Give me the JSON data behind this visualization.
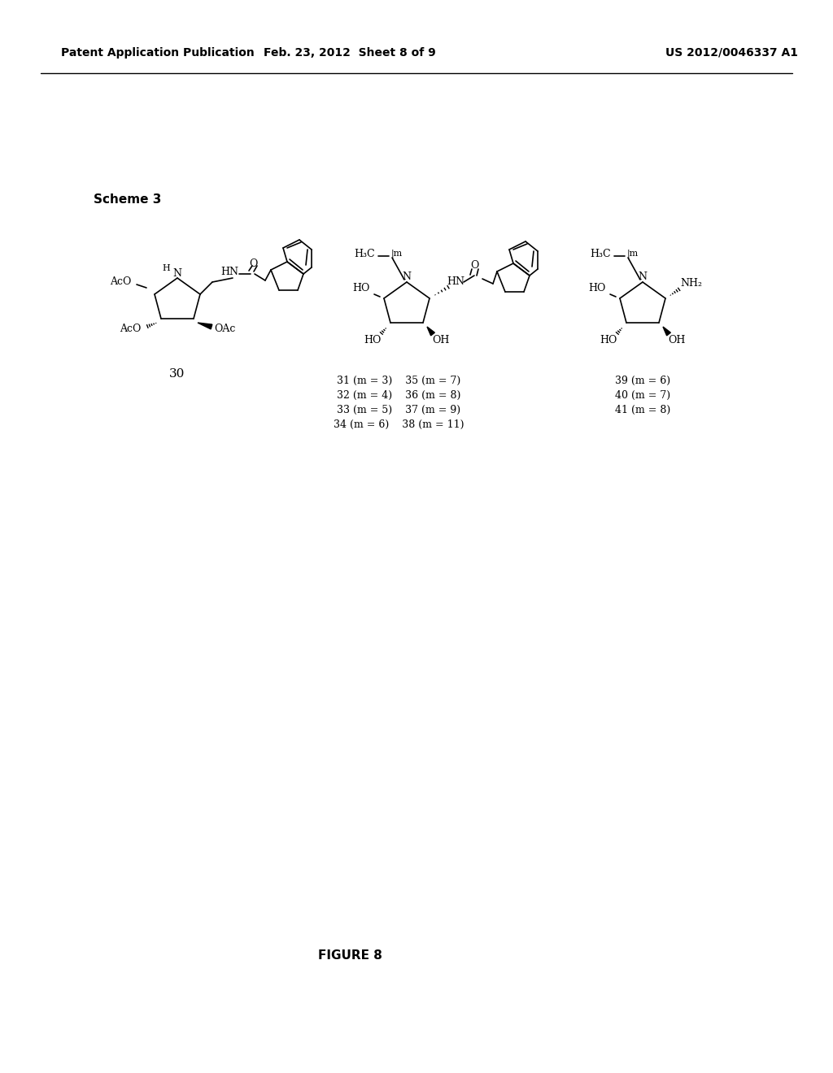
{
  "background_color": "#ffffff",
  "header_left": "Patent Application Publication",
  "header_center": "Feb. 23, 2012  Sheet 8 of 9",
  "header_right": "US 2012/0046337 A1",
  "scheme_label": "Scheme 3",
  "compound30_label": "30",
  "middle_labels": [
    "31 (m = 3)    35 (m = 7)",
    "32 (m = 4)    36 (m = 8)",
    "33 (m = 5)    37 (m = 9)",
    "34 (m = 6)    38 (m = 11)"
  ],
  "right_labels": [
    "39 (m = 6)",
    "40 (m = 7)",
    "41 (m = 8)"
  ],
  "figure_label": "FIGURE 8"
}
